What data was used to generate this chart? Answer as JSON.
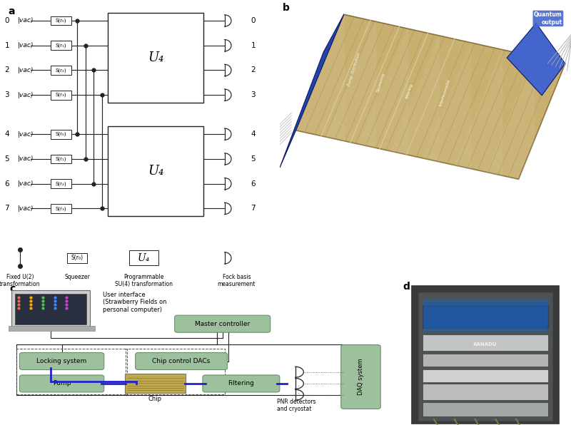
{
  "bg_color": "#ffffff",
  "panel_a_label": "a",
  "panel_b_label": "b",
  "panel_c_label": "c",
  "panel_d_label": "d",
  "box_color": "#9dc09d",
  "box_edge": "#6a8f6a",
  "wire_color": "#222222",
  "blue_wire": "#2222cc",
  "squeezer_labels": [
    "S(r₀)",
    "S(r₁)",
    "S(r₂)",
    "S(r₃)"
  ],
  "mode_labels": [
    "0",
    "1",
    "2",
    "3",
    "4",
    "5",
    "6",
    "7"
  ],
  "vac_label": "|vac⟩",
  "U4_label": "U₄",
  "chip_color": "#c8b070",
  "chip_dark": "#8a7040",
  "blue_connector": "#2244aa",
  "gray_connector": "#888888",
  "c_boxes": [
    "Master controller",
    "Locking system",
    "Chip control DACs",
    "Pump",
    "Filtering",
    "DAQ system"
  ],
  "c_chip_label": "Chip",
  "pnr_label": "PNR detectors\nand cryostat",
  "user_interface_text": "User interface\n(Strawberry Fields on\npersonal computer)"
}
